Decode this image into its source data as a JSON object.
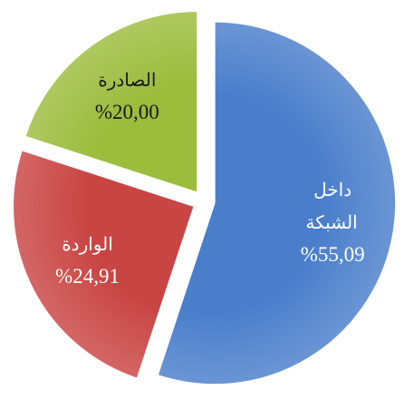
{
  "chart_data": {
    "type": "pie",
    "categories": [
      "داخل الشبكة",
      "الواردة",
      "الصادرة"
    ],
    "values": [
      55.09,
      24.91,
      20.0
    ],
    "value_labels": [
      "%55,09",
      "%24,91",
      "%20,00"
    ],
    "colors": [
      "#4a7ecb",
      "#c94543",
      "#9cbc3c"
    ],
    "label_colors": [
      "#ffffff",
      "#ffffff",
      "#1a1a1a"
    ]
  }
}
